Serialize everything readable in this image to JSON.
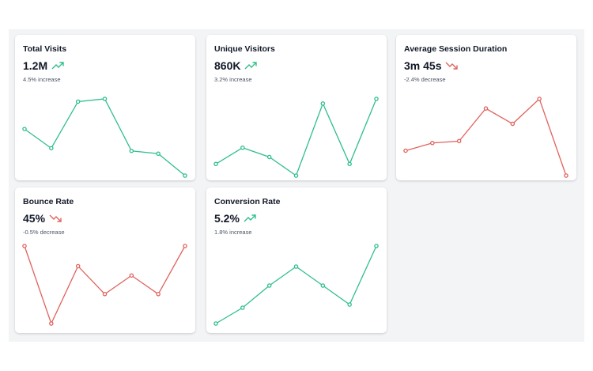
{
  "colors": {
    "up": "#2fbf8b",
    "down": "#e0635e"
  },
  "cards": [
    {
      "title": "Total Visits",
      "value": "1.2M",
      "trend": "up",
      "icon": "trending-up-icon",
      "change": "4.5% increase",
      "series": [
        52,
        45,
        62,
        63,
        44,
        43,
        35
      ]
    },
    {
      "title": "Unique Visitors",
      "value": "860K",
      "trend": "up",
      "icon": "trending-up-icon",
      "change": "3.2% increase",
      "series": [
        45,
        52,
        48,
        40,
        71,
        45,
        73
      ]
    },
    {
      "title": "Average Session Duration",
      "value": "3m 45s",
      "trend": "down",
      "icon": "trending-down-icon",
      "change": "-2.4% decrease",
      "series": [
        44,
        48,
        49,
        66,
        58,
        71,
        31
      ]
    },
    {
      "title": "Bounce Rate",
      "value": "45%",
      "trend": "down",
      "icon": "trending-down-icon",
      "change": "-0.5% decrease",
      "series": [
        51,
        1,
        38,
        20,
        32,
        20,
        51
      ]
    },
    {
      "title": "Conversion Rate",
      "value": "5.2%",
      "trend": "up",
      "icon": "trending-up-icon",
      "change": "1.8% increase",
      "series": [
        1,
        11,
        25,
        37,
        25,
        13,
        50
      ]
    }
  ]
}
